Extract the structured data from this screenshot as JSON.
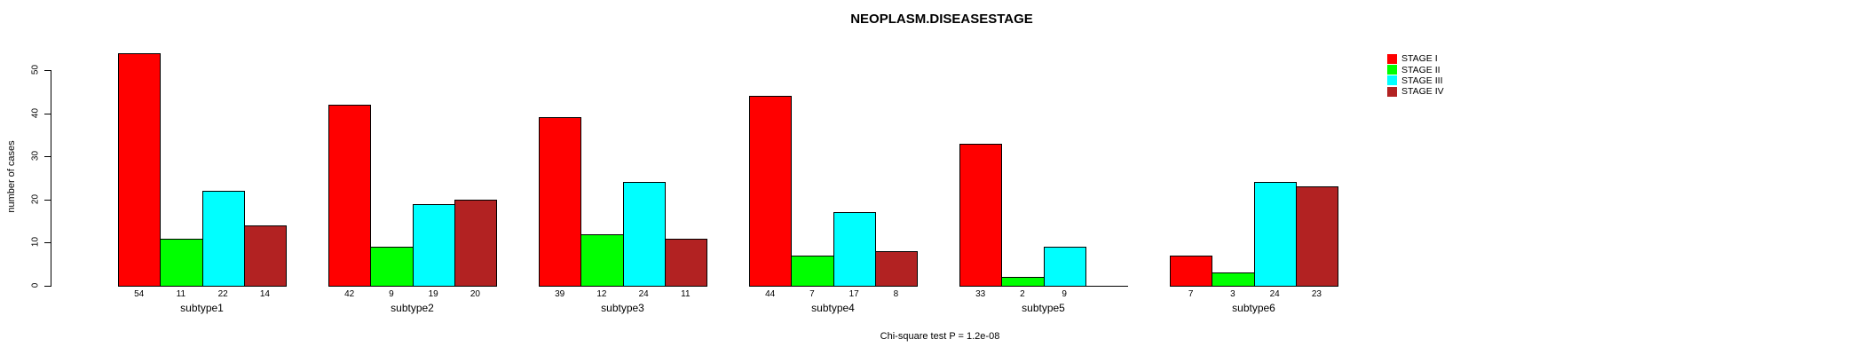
{
  "chart_data": {
    "type": "bar",
    "title": "NEOPLASM.DISEASESTAGE",
    "ylabel": "number of cases",
    "xlabel": "",
    "caption": "Chi-square test P = 1.2e-08",
    "categories": [
      "subtype1",
      "subtype2",
      "subtype3",
      "subtype4",
      "subtype5",
      "subtype6"
    ],
    "series": [
      {
        "name": "STAGE I",
        "color": "#ff0000",
        "values": [
          54,
          42,
          39,
          44,
          33,
          7
        ]
      },
      {
        "name": "STAGE II",
        "color": "#00ff00",
        "values": [
          11,
          9,
          12,
          7,
          2,
          3
        ]
      },
      {
        "name": "STAGE III",
        "color": "#00ffff",
        "values": [
          22,
          19,
          24,
          17,
          9,
          24
        ]
      },
      {
        "name": "STAGE IV",
        "color": "#b22222",
        "values": [
          14,
          20,
          11,
          8,
          0,
          23
        ]
      }
    ],
    "yticks": [
      0,
      10,
      20,
      30,
      40,
      50
    ],
    "ylim": [
      0,
      54
    ],
    "grid": false,
    "legend_position": "right",
    "bar_value_labels": true,
    "zero_value_label_hidden": true
  }
}
